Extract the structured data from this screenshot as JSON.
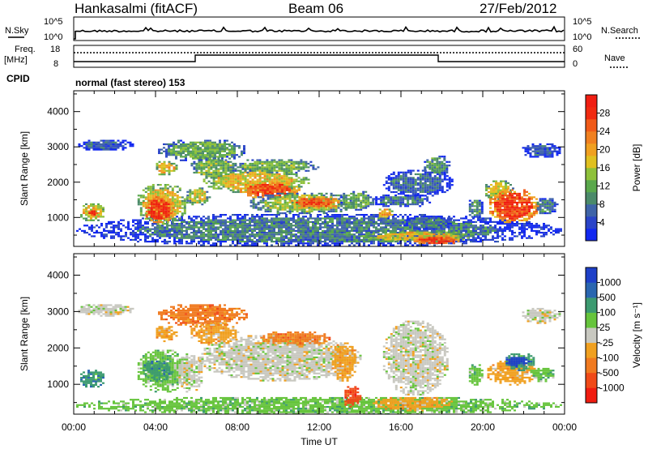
{
  "header": {
    "title": "Hankasalmi (fitACF)",
    "beam": "Beam 06",
    "date": "27/Feb/2012"
  },
  "top_panels": {
    "nsky_label": "N.Sky",
    "nsearch_label": "N.Search",
    "count_ticks": [
      "10^5",
      "10^0"
    ],
    "freq_label_1": "Freq.",
    "freq_label_2": "[MHz]",
    "freq_ticks": [
      "18",
      "8"
    ],
    "nave_label": "Nave",
    "nave_ticks": [
      "60",
      "0"
    ],
    "cpid_label": "CPID",
    "cpid_text": "normal (fast stereo) 153"
  },
  "chart_data": [
    {
      "type": "heatmap",
      "name": "power",
      "ylabel": "Slant Range [km]",
      "xlabel": "",
      "x_ticks": [
        "00:00",
        "04:00",
        "08:00",
        "12:00",
        "16:00",
        "20:00",
        "00:00"
      ],
      "x_range_hours": [
        0,
        24
      ],
      "y_ticks": [
        "1000",
        "2000",
        "3000",
        "4000"
      ],
      "y_tick_values": [
        1000,
        2000,
        3000,
        4000
      ],
      "ylim": [
        180,
        4590
      ],
      "colorbar": {
        "label": "Power [dB]",
        "tick_labels": [
          "4",
          "8",
          "12",
          "16",
          "20",
          "24",
          "28"
        ],
        "tick_values": [
          4,
          8,
          12,
          16,
          20,
          24,
          28
        ],
        "range": [
          0,
          32
        ],
        "colors": [
          "#1228f0",
          "#2a44c8",
          "#3f64a8",
          "#4b8a6a",
          "#5aa84c",
          "#8ec13a",
          "#e0c020",
          "#f0a020",
          "#f08020",
          "#f05a18",
          "#f02a10",
          "#f01e12"
        ]
      },
      "regions": [
        {
          "t": [
            0.2,
            1.5
          ],
          "r": [
            900,
            1450
          ],
          "v": 18
        },
        {
          "t": [
            0.6,
            1.2
          ],
          "r": [
            1050,
            1250
          ],
          "v": 28
        },
        {
          "t": [
            0.1,
            2.9
          ],
          "r": [
            2900,
            3250
          ],
          "v": 6
        },
        {
          "t": [
            0.0,
            23.8
          ],
          "r": [
            180,
            1150
          ],
          "v": 8
        },
        {
          "t": [
            3.0,
            5.6
          ],
          "r": [
            800,
            2000
          ],
          "v": 18
        },
        {
          "t": [
            3.4,
            4.9
          ],
          "r": [
            850,
            1650
          ],
          "v": 28
        },
        {
          "t": [
            5.4,
            6.6
          ],
          "r": [
            1350,
            1900
          ],
          "v": 16
        },
        {
          "t": [
            3.9,
            5.0
          ],
          "r": [
            2200,
            2650
          ],
          "v": 18
        },
        {
          "t": [
            4.0,
            8.5
          ],
          "r": [
            2600,
            3250
          ],
          "v": 12
        },
        {
          "t": [
            5.6,
            8.0
          ],
          "r": [
            2100,
            2750
          ],
          "v": 13
        },
        {
          "t": [
            6.2,
            11.5
          ],
          "r": [
            1700,
            2400
          ],
          "v": 18
        },
        {
          "t": [
            8.0,
            11.0
          ],
          "r": [
            1550,
            2050
          ],
          "v": 26
        },
        {
          "t": [
            7.5,
            12.0
          ],
          "r": [
            2250,
            2700
          ],
          "v": 13
        },
        {
          "t": [
            8.5,
            13.8
          ],
          "r": [
            1100,
            1750
          ],
          "v": 14
        },
        {
          "t": [
            10.5,
            13.0
          ],
          "r": [
            1250,
            1650
          ],
          "v": 25
        },
        {
          "t": [
            12.8,
            14.7
          ],
          "r": [
            1200,
            1800
          ],
          "v": 12
        },
        {
          "t": [
            14.5,
            17.5
          ],
          "r": [
            1300,
            1700
          ],
          "v": 8
        },
        {
          "t": [
            14.8,
            15.6
          ],
          "r": [
            1000,
            1300
          ],
          "v": 20
        },
        {
          "t": [
            15.0,
            18.5
          ],
          "r": [
            1600,
            2400
          ],
          "v": 7
        },
        {
          "t": [
            17.0,
            18.4
          ],
          "r": [
            2200,
            2800
          ],
          "v": 10
        },
        {
          "t": [
            14.0,
            19.5
          ],
          "r": [
            300,
            650
          ],
          "v": 18
        },
        {
          "t": [
            16.5,
            19.0
          ],
          "r": [
            250,
            500
          ],
          "v": 27
        },
        {
          "t": [
            16.0,
            18.5
          ],
          "r": [
            650,
            1100
          ],
          "v": 8
        },
        {
          "t": [
            19.2,
            20.0
          ],
          "r": [
            1000,
            1600
          ],
          "v": 10
        },
        {
          "t": [
            20.0,
            21.5
          ],
          "r": [
            1500,
            2100
          ],
          "v": 17
        },
        {
          "t": [
            20.2,
            22.7
          ],
          "r": [
            850,
            1850
          ],
          "v": 27
        },
        {
          "t": [
            22.4,
            23.6
          ],
          "r": [
            1100,
            1600
          ],
          "v": 9
        },
        {
          "t": [
            21.8,
            23.8
          ],
          "r": [
            2700,
            3150
          ],
          "v": 6
        }
      ]
    },
    {
      "type": "heatmap",
      "name": "velocity",
      "ylabel": "Slant Range [km]",
      "xlabel": "Time UT",
      "x_ticks": [
        "00:00",
        "04:00",
        "08:00",
        "12:00",
        "16:00",
        "20:00",
        "00:00"
      ],
      "x_range_hours": [
        0,
        24
      ],
      "y_ticks": [
        "1000",
        "2000",
        "3000",
        "4000"
      ],
      "y_tick_values": [
        1000,
        2000,
        3000,
        4000
      ],
      "ylim": [
        180,
        4590
      ],
      "colorbar": {
        "label": "Velocity [m s⁻¹]",
        "tick_labels": [
          "1000",
          "500",
          "100",
          "25",
          "-25",
          "-100",
          "-500",
          "-1000"
        ],
        "colors": [
          "#1e40c8",
          "#2a66b0",
          "#3c9a70",
          "#66c43c",
          "#c8c8c0",
          "#f0a020",
          "#f07a20",
          "#f04a18",
          "#f01c10"
        ]
      },
      "regions": [
        {
          "t": [
            0.2,
            1.5
          ],
          "r": [
            900,
            1450
          ],
          "v": 2
        },
        {
          "t": [
            0.1,
            2.9
          ],
          "r": [
            2900,
            3250
          ],
          "v": 4
        },
        {
          "t": [
            0.0,
            23.8
          ],
          "r": [
            180,
            700
          ],
          "v": 3
        },
        {
          "t": [
            3.0,
            5.6
          ],
          "r": [
            800,
            2000
          ],
          "v": 3
        },
        {
          "t": [
            3.3,
            4.8
          ],
          "r": [
            1100,
            1700
          ],
          "v": 2
        },
        {
          "t": [
            5.0,
            6.3
          ],
          "r": [
            800,
            1900
          ],
          "v": 4
        },
        {
          "t": [
            3.9,
            5.0
          ],
          "r": [
            2200,
            2650
          ],
          "v": 5
        },
        {
          "t": [
            4.0,
            8.5
          ],
          "r": [
            2600,
            3250
          ],
          "v": 6
        },
        {
          "t": [
            5.6,
            8.0
          ],
          "r": [
            2100,
            2750
          ],
          "v": 5
        },
        {
          "t": [
            6.0,
            14.0
          ],
          "r": [
            1100,
            2400
          ],
          "v": 4
        },
        {
          "t": [
            9.0,
            12.5
          ],
          "r": [
            2100,
            2500
          ],
          "v": 6
        },
        {
          "t": [
            12.5,
            13.8
          ],
          "r": [
            1100,
            2200
          ],
          "v": 5
        },
        {
          "t": [
            13.0,
            14.0
          ],
          "r": [
            400,
            1000
          ],
          "v": 7
        },
        {
          "t": [
            14.5,
            18.5
          ],
          "r": [
            300,
            700
          ],
          "v": 5
        },
        {
          "t": [
            15.0,
            18.3
          ],
          "r": [
            700,
            2800
          ],
          "v": 4
        },
        {
          "t": [
            19.2,
            20.0
          ],
          "r": [
            1000,
            1600
          ],
          "v": 3
        },
        {
          "t": [
            20.1,
            22.6
          ],
          "r": [
            1000,
            1700
          ],
          "v": 5
        },
        {
          "t": [
            21.0,
            22.5
          ],
          "r": [
            1400,
            1900
          ],
          "v": 2
        },
        {
          "t": [
            21.0,
            22.2
          ],
          "r": [
            1500,
            1800
          ],
          "v": 0
        },
        {
          "t": [
            22.2,
            23.5
          ],
          "r": [
            1100,
            1500
          ],
          "v": 3
        },
        {
          "t": [
            21.8,
            23.8
          ],
          "r": [
            2700,
            3150
          ],
          "v": 4
        }
      ]
    }
  ]
}
